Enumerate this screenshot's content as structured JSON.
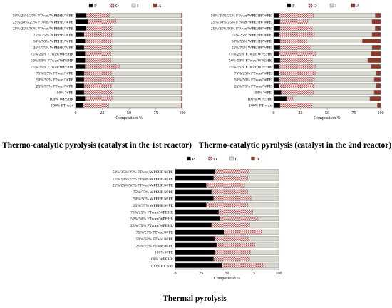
{
  "figure": {
    "captions": [
      "Thermo-catalytic pyrolysis (catalyst in the 1st reactor)",
      "Thermo-catalytic pyrolysis (catalyst in the 2nd reactor)",
      "Thermal pyrolysis"
    ]
  },
  "chart_data": [
    {
      "type": "bar",
      "orientation": "horizontal",
      "stacked": true,
      "title": "Thermo-catalytic pyrolysis (catalyst in the 1st reactor)",
      "xlabel": "Composition %",
      "ylabel": "",
      "xlim": [
        0,
        100
      ],
      "xticks": [
        "0",
        "25",
        "50",
        "75",
        "100"
      ],
      "legend_position": "top",
      "categories": [
        "50%/25%/25% FTwax/WPEHR/WPE",
        "25%/50%/25% FTwax/WPEHR/WPE",
        "25%/25%/50% FTwax/WPEHR/WPE",
        "75%/25% WPEHR/WPE",
        "50%/50% WPEHR/WPE",
        "25%/75% WPEHR/WPE",
        "75%/25% FTwax/WPEHR",
        "50%/50% FTwax/WPEHR",
        "25%/75% FTwax/WPEHR",
        "75%/25% FTwax/WPE",
        "50%/50% FTwax/WPE",
        "25%/75% FTwax/WPE",
        "100% WPE",
        "100% WPEHR",
        "100% FT wax"
      ],
      "series": [
        {
          "name": "P",
          "color": "#000000",
          "pattern": "solid",
          "values": [
            10,
            12,
            10,
            8,
            9,
            8,
            9,
            9,
            9,
            8,
            8,
            8,
            8,
            9,
            7
          ]
        },
        {
          "name": "O",
          "color": "#c0504d",
          "pattern": "checker",
          "values": [
            22,
            26,
            24,
            26,
            26,
            26,
            24,
            24,
            32,
            26,
            28,
            26,
            26,
            26,
            24
          ]
        },
        {
          "name": "I",
          "color": "#d9d9d0",
          "pattern": "solid",
          "values": [
            67,
            61,
            65,
            65,
            64,
            65,
            66,
            66,
            58,
            65,
            63,
            65,
            65,
            64,
            68
          ]
        },
        {
          "name": "A",
          "color": "#8b3a2a",
          "pattern": "solid",
          "values": [
            1,
            1,
            1,
            1,
            1,
            1,
            1,
            1,
            1,
            1,
            1,
            1,
            1,
            1,
            1
          ]
        }
      ]
    },
    {
      "type": "bar",
      "orientation": "horizontal",
      "stacked": true,
      "title": "Thermo-catalytic pyrolysis (catalyst in the 2nd reactor)",
      "xlabel": "Composition %",
      "ylabel": "",
      "xlim": [
        0,
        100
      ],
      "xticks": [
        "0",
        "25",
        "50",
        "75",
        "100"
      ],
      "legend_position": "top",
      "categories": [
        "50%/25%/25% FTwax/WPEHR/WPE",
        "25%/50%/25% FTwax/WPEHR/WPE",
        "25%/25%/50% FTwax/WPEHR/WPE",
        "75%/25% WPEHR/WPE",
        "50%/50% WPEHR/WPE",
        "25%/75% WPEHR/WPE",
        "75%/25% FTwax/WPEHR",
        "50%/50% FTwax/WPEHR",
        "25%/75% FTwax/WPEHR",
        "75%/25% FTwax/WPE",
        "50%/50% FTwax/WPE",
        "25%/75% FTwax/WPE",
        "100% WPE",
        "100% WPEHR",
        "100% FT wax"
      ],
      "series": [
        {
          "name": "P",
          "color": "#000000",
          "pattern": "solid",
          "values": [
            5,
            6,
            6,
            5,
            6,
            6,
            5,
            6,
            5,
            5,
            5,
            5,
            7,
            12,
            6
          ]
        },
        {
          "name": "O",
          "color": "#c0504d",
          "pattern": "checker",
          "values": [
            32,
            26,
            30,
            33,
            25,
            28,
            34,
            30,
            34,
            34,
            33,
            33,
            30,
            6,
            30
          ]
        },
        {
          "name": "I",
          "color": "#d9d9d0",
          "pattern": "solid",
          "values": [
            58,
            60,
            59,
            54,
            52,
            58,
            52,
            52,
            52,
            57,
            56,
            58,
            57,
            72,
            61
          ]
        },
        {
          "name": "A",
          "color": "#8b3a2a",
          "pattern": "solid",
          "values": [
            5,
            8,
            5,
            8,
            17,
            8,
            9,
            12,
            9,
            4,
            6,
            4,
            6,
            10,
            3
          ]
        }
      ]
    },
    {
      "type": "bar",
      "orientation": "horizontal",
      "stacked": true,
      "title": "Thermal pyrolysis",
      "xlabel": "Composition %",
      "ylabel": "",
      "xlim": [
        0,
        100
      ],
      "xticks": [
        "0",
        "25",
        "50",
        "75",
        "100"
      ],
      "legend_position": "top",
      "categories": [
        "50%/25%/25% FTwax/WPEHR/WPE",
        "25%/50%/25% FTwax/WPEHR/WPE",
        "25%/25%/50% FTwax/WPEHR/WPE",
        "75%/25% WPEHR/WPE",
        "50%/50% WPEHR/WPE",
        "25%/75% WPEHR/WPE",
        "75%/25% FTwax/WPEHR",
        "50%/50% FTwax/WPEHR",
        "25%/75% FTwax/WPEHR",
        "75%/25% FTwax/WPE",
        "50%/50% FTwax/WPE",
        "25%/75% FTwax/WPE",
        "100% WPE",
        "100% WPEHR",
        "100% FT wax"
      ],
      "series": [
        {
          "name": "P",
          "color": "#000000",
          "pattern": "solid",
          "values": [
            38,
            37,
            30,
            35,
            37,
            30,
            42,
            43,
            35,
            47,
            38,
            40,
            38,
            37,
            45
          ]
        },
        {
          "name": "O",
          "color": "#c0504d",
          "pattern": "checker",
          "values": [
            33,
            33,
            37,
            35,
            37,
            40,
            33,
            37,
            37,
            37,
            33,
            37,
            35,
            35,
            41
          ]
        },
        {
          "name": "I",
          "color": "#d9d9d0",
          "pattern": "solid",
          "values": [
            29,
            30,
            33,
            30,
            26,
            30,
            25,
            20,
            28,
            16,
            29,
            23,
            27,
            28,
            14
          ]
        },
        {
          "name": "A",
          "color": "#8b3a2a",
          "pattern": "solid",
          "values": [
            0,
            0,
            0,
            0,
            0,
            0,
            0,
            0,
            0,
            0,
            0,
            0,
            0,
            0,
            0
          ]
        }
      ]
    }
  ]
}
